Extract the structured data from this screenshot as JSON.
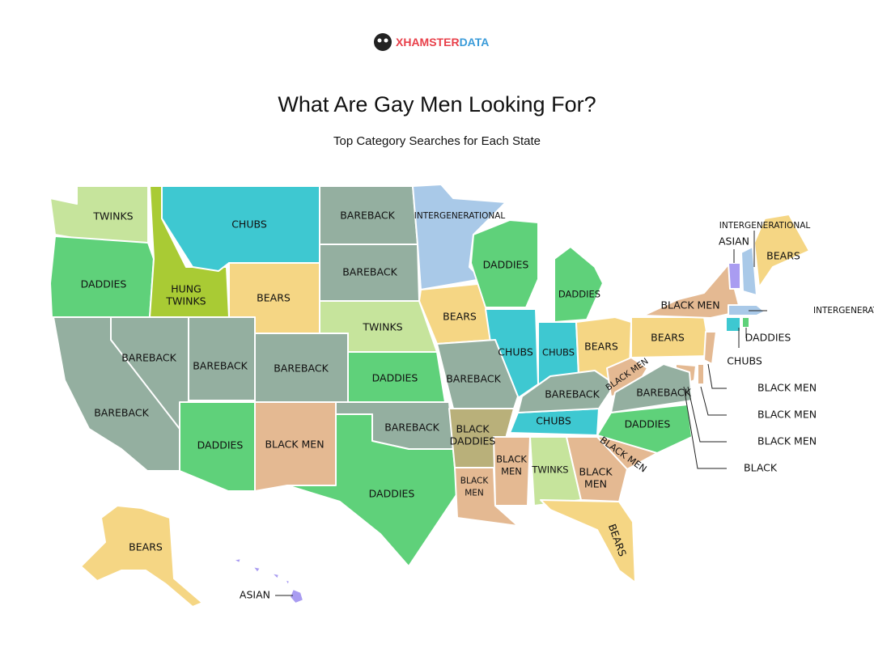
{
  "header": {
    "brand": "XHAMSTER",
    "brand_suffix": "DATA",
    "title": "What Are Gay Men Looking For?",
    "subtitle": "Top Category Searches for Each State"
  },
  "regions": [
    {
      "label": "TWINKS",
      "color": "#c6e49c"
    },
    {
      "label": "DADDIES",
      "color": "#5fd17a"
    },
    {
      "label": [
        "HUNG",
        "TWINKS"
      ],
      "color": "#a9cb34"
    },
    {
      "label": "CHUBS",
      "color": "#3ec8d1"
    },
    {
      "label": "BEARS",
      "color": "#f5d684"
    },
    {
      "label": "BAREBACK",
      "color": "#94afa0"
    },
    {
      "label": "BAREBACK",
      "color": "#94afa0"
    },
    {
      "label": "TWINKS",
      "color": "#c6e49c"
    },
    {
      "label": "INTERGENERATIONAL",
      "color": "#a9c9e8"
    },
    {
      "label": "BEARS",
      "color": "#f5d684"
    },
    {
      "label": "DADDIES",
      "color": "#5fd17a"
    },
    {
      "label": "DADDIES",
      "color": "#5fd17a"
    },
    {
      "label": "CHUBS",
      "color": "#3ec8d1"
    },
    {
      "label": "CHUBS",
      "color": "#3ec8d1"
    },
    {
      "label": "BEARS",
      "color": "#f5d684"
    },
    {
      "label": "BEARS",
      "color": "#f5d684"
    },
    {
      "label": "BLACK MEN",
      "color": "#e4b992"
    },
    {
      "label": "ASIAN",
      "color": "#a99cf1"
    },
    {
      "label": "INTERGENERATIONAL",
      "color": "#a9c9e8"
    },
    {
      "label": "BEARS",
      "color": "#f5d684"
    },
    {
      "label": "INTERGENERATIONAL",
      "color": "#a9c9e8"
    },
    {
      "label": "CHUBS",
      "color": "#3ec8d1"
    },
    {
      "label": "DADDIES",
      "color": "#5fd17a"
    },
    {
      "label": "BLACK MEN",
      "color": "#e4b992"
    },
    {
      "label": "BLACK MEN",
      "color": "#e4b992"
    },
    {
      "label": "BLACK MEN",
      "color": "#e4b992"
    },
    {
      "label": "BLACK",
      "color": "#e4b992"
    },
    {
      "label": "BAREBACK",
      "color": "#94afa0"
    },
    {
      "label": "BAREBACK",
      "color": "#94afa0"
    },
    {
      "label": "BAREBACK",
      "color": "#94afa0"
    },
    {
      "label": "BAREBACK",
      "color": "#94afa0"
    },
    {
      "label": "DADDIES",
      "color": "#5fd17a"
    },
    {
      "label": "BAREBACK",
      "color": "#94afa0"
    },
    {
      "label": "DADDIES",
      "color": "#5fd17a"
    },
    {
      "label": "BLACK MEN",
      "color": "#e4b992"
    },
    {
      "label": "BAREBACK",
      "color": "#94afa0"
    },
    {
      "label": "DADDIES",
      "color": "#5fd17a"
    },
    {
      "label": [
        "BLACK",
        "DADDIES"
      ],
      "color": "#b9b07a"
    },
    {
      "label": [
        "BLACK",
        "MEN"
      ],
      "color": "#e4b992"
    },
    {
      "label": [
        "BLACK",
        "MEN"
      ],
      "color": "#e4b992"
    },
    {
      "label": "TWINKS",
      "color": "#c6e49c"
    },
    {
      "label": [
        "BLACK",
        "MEN"
      ],
      "color": "#e4b992"
    },
    {
      "label": "BLACK MEN",
      "color": "#e4b992"
    },
    {
      "label": "DADDIES",
      "color": "#5fd17a"
    },
    {
      "label": "CHUBS",
      "color": "#3ec8d1"
    },
    {
      "label": "BAREBACK",
      "color": "#94afa0"
    },
    {
      "label": "BLACK MEN",
      "color": "#e4b992"
    },
    {
      "label": "BAREBACK",
      "color": "#94afa0"
    },
    {
      "label": "BEARS",
      "color": "#f5d684"
    },
    {
      "label": "BEARS",
      "color": "#f5d684"
    },
    {
      "label": "ASIAN",
      "color": "#a99cf1"
    }
  ]
}
